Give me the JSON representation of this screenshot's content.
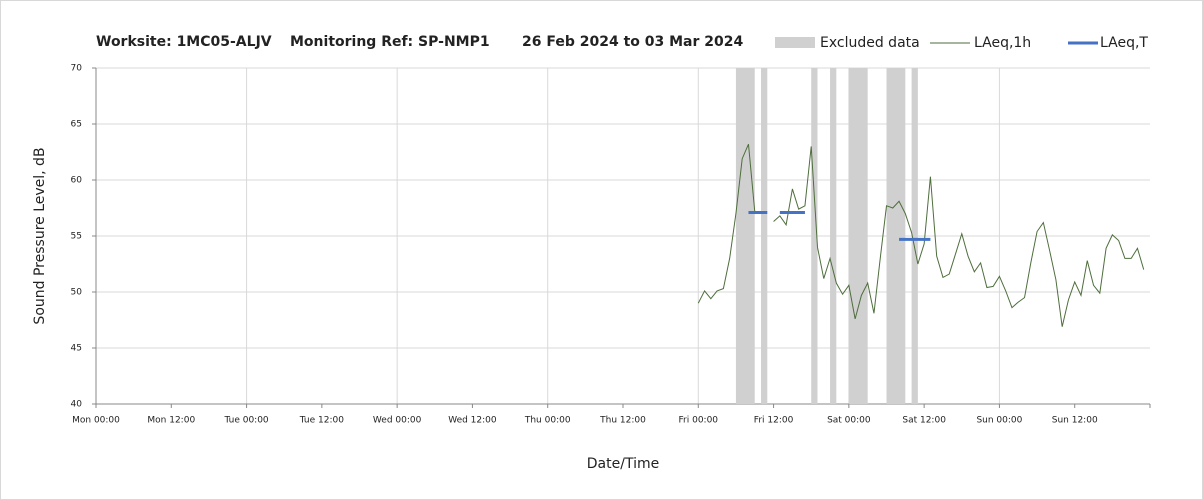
{
  "chart_data": {
    "type": "line",
    "title_parts": [
      "Worksite: 1MC05-ALJV",
      "Monitoring Ref: SP-NMP1",
      "26 Feb 2024 to 03 Mar 2024"
    ],
    "ylabel": "Sound Pressure Level, dB",
    "xlabel": "Date/Time",
    "xlim": [
      0,
      168
    ],
    "xticks": [
      {
        "value": 0,
        "label": "Mon 00:00"
      },
      {
        "value": 12,
        "label": "Mon 12:00"
      },
      {
        "value": 24,
        "label": "Tue 00:00"
      },
      {
        "value": 36,
        "label": "Tue 12:00"
      },
      {
        "value": 48,
        "label": "Wed 00:00"
      },
      {
        "value": 60,
        "label": "Wed 12:00"
      },
      {
        "value": 72,
        "label": "Thu 00:00"
      },
      {
        "value": 84,
        "label": "Thu 12:00"
      },
      {
        "value": 96,
        "label": "Fri 00:00"
      },
      {
        "value": 108,
        "label": "Fri 12:00"
      },
      {
        "value": 120,
        "label": "Sat 00:00"
      },
      {
        "value": 132,
        "label": "Sat 12:00"
      },
      {
        "value": 144,
        "label": "Sun 00:00"
      },
      {
        "value": 156,
        "label": "Sun 12:00"
      }
    ],
    "ylim": [
      40,
      70
    ],
    "yticks": [
      40,
      45,
      50,
      55,
      60,
      65,
      70
    ],
    "grid": true,
    "excluded": {
      "name": "Excluded data",
      "color": "#d0d0d0",
      "ranges": [
        [
          102,
          105
        ],
        [
          106,
          107
        ],
        [
          114,
          115
        ],
        [
          117,
          118
        ],
        [
          120,
          123
        ],
        [
          126,
          129
        ],
        [
          130,
          131
        ]
      ]
    },
    "series": [
      {
        "name": "LAeq,1h",
        "color": "#4e6e3c",
        "x": [
          96,
          97,
          98,
          99,
          100,
          101,
          102,
          103,
          104,
          105,
          106,
          107,
          108,
          109,
          110,
          111,
          112,
          113,
          114,
          115,
          116,
          117,
          118,
          119,
          120,
          121,
          122,
          123,
          124,
          125,
          126,
          127,
          128,
          129,
          130,
          131,
          132,
          133,
          134,
          135,
          136,
          137,
          138,
          139,
          140,
          141,
          142,
          143,
          144,
          145,
          146,
          147,
          148,
          149,
          150,
          151,
          152,
          153,
          154,
          155,
          156,
          157,
          158,
          159,
          160,
          161,
          162,
          163,
          164,
          165,
          166,
          167
        ],
        "values": [
          49,
          50.1,
          49.4,
          50.1,
          50.3,
          53,
          57,
          61.9,
          63.2,
          57.2,
          null,
          null,
          56.3,
          56.8,
          56.0,
          59.2,
          57.4,
          57.7,
          63.0,
          54,
          51.2,
          53,
          50.8,
          49.8,
          50.6,
          47.6,
          49.7,
          50.8,
          48.1,
          53,
          57.7,
          57.5,
          58.1,
          57,
          55.3,
          52.5,
          54.3,
          60.3,
          53.2,
          51.3,
          51.6,
          53.4,
          55.2,
          53.2,
          51.8,
          52.6,
          50.4,
          50.5,
          51.4,
          50.1,
          48.6,
          49.1,
          49.5,
          52.6,
          55.4,
          56.2,
          53.7,
          51.1,
          46.9,
          49.3,
          50.9,
          49.7,
          52.8,
          50.6,
          49.9,
          53.9,
          55.1,
          54.6,
          53,
          53,
          53.9,
          52
        ]
      }
    ],
    "periods": {
      "name": "LAeq,T",
      "color": "#4472c4",
      "segments": [
        [
          104,
          107
        ],
        [
          109,
          113
        ],
        [
          128,
          133
        ]
      ],
      "values": [
        57.1,
        57.1,
        54.7
      ]
    }
  }
}
